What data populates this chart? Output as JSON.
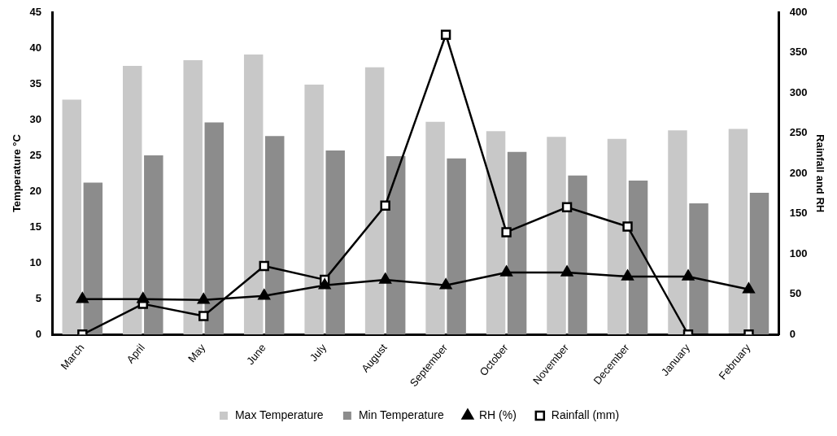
{
  "chart_data": {
    "type": "bar",
    "ylabel": "Temperature °C",
    "y2label": "Rainfall and RH",
    "categories": [
      "March",
      "April",
      "May",
      "June",
      "July",
      "August",
      "September",
      "October",
      "November",
      "December",
      "January",
      "February"
    ],
    "series": [
      {
        "name": "Max Temperature",
        "color": "#c8c8c8",
        "values": [
          32.8,
          37.5,
          38.3,
          39.1,
          34.9,
          37.3,
          29.7,
          28.4,
          27.6,
          27.3,
          28.5,
          28.7
        ]
      },
      {
        "name": "Min Temperature",
        "color": "#8c8c8c",
        "values": [
          21.2,
          25,
          29.6,
          27.7,
          25.7,
          24.9,
          24.6,
          25.5,
          22.2,
          21.5,
          18.3,
          19.8
        ]
      },
      {
        "name": "RH (%)",
        "type": "line",
        "axis": "y2",
        "color": "#000000",
        "marker": "triangle",
        "values": [
          44,
          44,
          43,
          48,
          61,
          68,
          61,
          77,
          77,
          72,
          72,
          56
        ]
      },
      {
        "name": "Rainfall (mm)",
        "type": "line",
        "axis": "y2",
        "color": "#000000",
        "marker": "square",
        "values": [
          0,
          38,
          23,
          85,
          68,
          160,
          372,
          127,
          158,
          134,
          0,
          0
        ]
      }
    ],
    "ylim": [
      0,
      45
    ],
    "yticks": [
      0,
      5,
      10,
      15,
      20,
      25,
      30,
      35,
      40,
      45
    ],
    "y2lim": [
      0,
      400
    ],
    "y2ticks": [
      0,
      50,
      100,
      150,
      200,
      250,
      300,
      350,
      400
    ],
    "grid": false,
    "legend": "bottom"
  }
}
